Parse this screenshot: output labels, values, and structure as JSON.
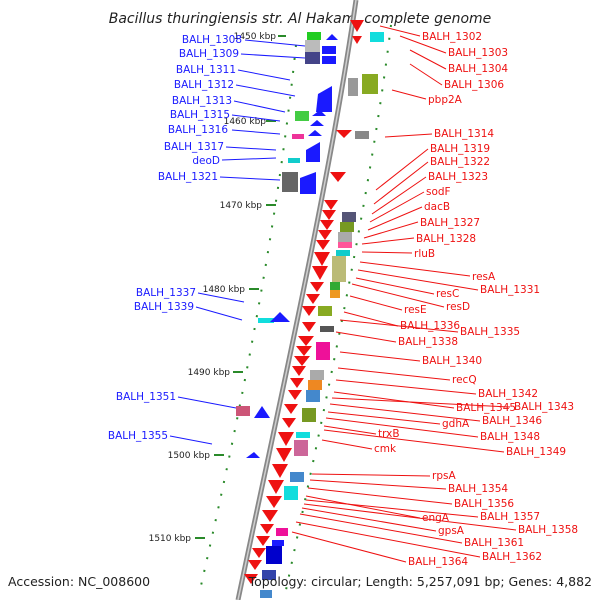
{
  "title": "Bacillus thuringiensis str. Al Hakam, complete genome",
  "footer": {
    "accession": "Accession: NC_008600",
    "summary": "Topology: circular; Length: 5,257,091 bp; Genes: 4,882"
  },
  "ticks": [
    "1450 kbp",
    "1460 kbp",
    "1470 kbp",
    "1480 kbp",
    "1490 kbp",
    "1500 kbp",
    "1510 kbp"
  ],
  "left_labels": [
    "BALH_1308",
    "BALH_1309",
    "BALH_1311",
    "BALH_1312",
    "BALH_1313",
    "BALH_1315",
    "BALH_1316",
    "BALH_1317",
    "deoD",
    "BALH_1321",
    "BALH_1337",
    "BALH_1339",
    "BALH_1351",
    "BALH_1355"
  ],
  "right_labels": [
    "BALH_1302",
    "BALH_1303",
    "BALH_1304",
    "BALH_1306",
    "pbp2A",
    "BALH_1314",
    "BALH_1319",
    "BALH_1322",
    "BALH_1323",
    "sodF",
    "dacB",
    "BALH_1327",
    "BALH_1328",
    "rluB",
    "resA",
    "BALH_1331",
    "resC",
    "resD",
    "resE",
    "BALH_1336",
    "BALH_1335",
    "BALH_1338",
    "BALH_1340",
    "recQ",
    "BALH_1342",
    "BALH_1345",
    "BALH_1343",
    "BALH_1346",
    "gdhA",
    "trxB",
    "BALH_1348",
    "cmk",
    "BALH_1349",
    "rpsA",
    "BALH_1354",
    "BALH_1356",
    "engA",
    "BALH_1357",
    "BALH_1358",
    "gpsA",
    "BALH_1361",
    "BALH_1362",
    "BALH_1364"
  ],
  "colors": {
    "forward_gene": "#1a1aff",
    "reverse_gene": "#ee1111",
    "left_label": "#1a1aff",
    "right_label": "#ee1111",
    "backbone": "#888888",
    "tick_mark": "#2a8a2a"
  }
}
